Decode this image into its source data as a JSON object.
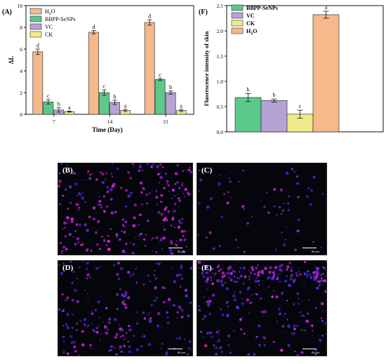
{
  "colors": {
    "H2O": "#f5b98c",
    "BBPP-SeNPs": "#5cc98a",
    "VC": "#b7a2d6",
    "CK": "#f0eb8a"
  },
  "chart_data": [
    {
      "panel": "(A)",
      "type": "bar",
      "xlabel": "Time (Day)",
      "ylabel": "ΔL",
      "ylim": [
        0,
        10
      ],
      "yticks": [
        "0",
        "2",
        "4",
        "6",
        "8",
        "10"
      ],
      "categories": [
        "7",
        "14",
        "21"
      ],
      "legend_position": "top-left",
      "series": [
        {
          "name": "H2O",
          "values": [
            5.75,
            7.55,
            8.45
          ],
          "errors": [
            0.25,
            0.15,
            0.25
          ],
          "letters": [
            "d",
            "d",
            "d"
          ]
        },
        {
          "name": "BBPP-SeNPs",
          "values": [
            1.15,
            2.0,
            3.2
          ],
          "errors": [
            0.2,
            0.25,
            0.1
          ],
          "letters": [
            "c",
            "c",
            "c"
          ]
        },
        {
          "name": "VC",
          "values": [
            0.4,
            1.1,
            2.0
          ],
          "errors": [
            0.2,
            0.2,
            0.15
          ],
          "letters": [
            "b",
            "b",
            "b"
          ]
        },
        {
          "name": "CK",
          "values": [
            0.25,
            0.35,
            0.35
          ],
          "errors": [
            0.05,
            0.1,
            0.1
          ],
          "letters": [
            "a",
            "a",
            "a"
          ]
        }
      ]
    },
    {
      "panel": "(F)",
      "type": "bar",
      "ylabel": "Fluorescence intensity of skin",
      "ylim": [
        0,
        2.5
      ],
      "yticks": [
        "0.0",
        "0.5",
        "1.0",
        "1.5",
        "2.0",
        "2.5"
      ],
      "legend_position": "top-left",
      "series": [
        {
          "name": "BBPP-SeNPs",
          "value": 0.68,
          "error": 0.08,
          "letter": "b"
        },
        {
          "name": "VC",
          "value": 0.62,
          "error": 0.03,
          "letter": "b"
        },
        {
          "name": "CK",
          "value": 0.35,
          "error": 0.08,
          "letter": "c"
        },
        {
          "name": "H2O",
          "value": 2.32,
          "error": 0.07,
          "letter": "a"
        }
      ]
    }
  ],
  "micrographs": [
    {
      "label": "(B)",
      "scale": "50 μm"
    },
    {
      "label": "(C)",
      "scale": "50 μm"
    },
    {
      "label": "(D)",
      "scale": "50 μm"
    },
    {
      "label": "(E)",
      "scale": "50 μm"
    }
  ]
}
